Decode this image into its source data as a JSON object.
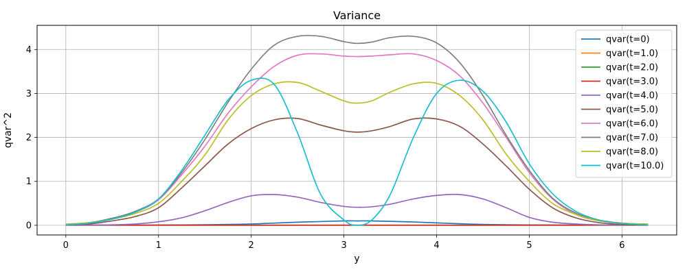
{
  "chart_data": {
    "type": "line",
    "title": "Variance",
    "xlabel": "y",
    "ylabel": "qvar^2",
    "xlim": [
      -0.31,
      6.59
    ],
    "ylim": [
      -0.22,
      4.55
    ],
    "xticks": [
      "0",
      "1",
      "2",
      "3",
      "4",
      "5",
      "6"
    ],
    "yticks": [
      "0",
      "1",
      "2",
      "3",
      "4"
    ],
    "grid": true,
    "legend_position": "top-right",
    "x": [
      0,
      0.25,
      0.5,
      0.75,
      1.0,
      1.25,
      1.5,
      1.75,
      2.0,
      2.25,
      2.5,
      2.75,
      3.0,
      3.14,
      3.3,
      3.5,
      3.75,
      4.0,
      4.25,
      4.5,
      4.75,
      5.0,
      5.25,
      5.5,
      5.75,
      6.0,
      6.28
    ],
    "series": [
      {
        "name": "qvar(t=0)",
        "color": "#1f77b4",
        "values": [
          0.005,
          0.005,
          0.005,
          0.005,
          0.006,
          0.008,
          0.012,
          0.02,
          0.03,
          0.05,
          0.07,
          0.085,
          0.1,
          0.1,
          0.1,
          0.09,
          0.075,
          0.055,
          0.035,
          0.02,
          0.012,
          0.008,
          0.006,
          0.005,
          0.005,
          0.005,
          0.005
        ]
      },
      {
        "name": "qvar(t=1.0)",
        "color": "#ff7f0e",
        "values": [
          0.002,
          0.002,
          0.002,
          0.002,
          0.002,
          0.002,
          0.002,
          0.002,
          0.002,
          0.002,
          0.002,
          0.002,
          0.002,
          0.002,
          0.002,
          0.002,
          0.002,
          0.002,
          0.002,
          0.002,
          0.002,
          0.002,
          0.002,
          0.002,
          0.002,
          0.002,
          0.002
        ]
      },
      {
        "name": "qvar(t=2.0)",
        "color": "#2ca02c",
        "values": [
          0.001,
          0.001,
          0.001,
          0.001,
          0.001,
          0.001,
          0.001,
          0.001,
          0.001,
          0.001,
          0.001,
          0.001,
          0.001,
          0.001,
          0.001,
          0.001,
          0.001,
          0.001,
          0.001,
          0.001,
          0.001,
          0.001,
          0.001,
          0.001,
          0.001,
          0.001,
          0.001
        ]
      },
      {
        "name": "qvar(t=3.0)",
        "color": "#d62728",
        "values": [
          0.003,
          0.003,
          0.003,
          0.003,
          0.003,
          0.003,
          0.003,
          0.003,
          0.003,
          0.003,
          0.003,
          0.003,
          0.003,
          0.003,
          0.003,
          0.003,
          0.003,
          0.003,
          0.003,
          0.003,
          0.003,
          0.003,
          0.003,
          0.003,
          0.003,
          0.003,
          0.003
        ]
      },
      {
        "name": "qvar(t=4.0)",
        "color": "#9467bd",
        "values": [
          0.003,
          0.005,
          0.01,
          0.03,
          0.08,
          0.17,
          0.33,
          0.52,
          0.67,
          0.7,
          0.64,
          0.52,
          0.43,
          0.41,
          0.42,
          0.48,
          0.6,
          0.68,
          0.7,
          0.6,
          0.4,
          0.18,
          0.07,
          0.03,
          0.01,
          0.005,
          0.003
        ]
      },
      {
        "name": "qvar(t=5.0)",
        "color": "#8c564b",
        "values": [
          0.01,
          0.03,
          0.1,
          0.2,
          0.4,
          0.85,
          1.35,
          1.85,
          2.2,
          2.4,
          2.43,
          2.28,
          2.15,
          2.12,
          2.15,
          2.25,
          2.42,
          2.42,
          2.25,
          1.85,
          1.35,
          0.82,
          0.4,
          0.17,
          0.06,
          0.02,
          0.01
        ]
      },
      {
        "name": "qvar(t=6.0)",
        "color": "#e377c2",
        "values": [
          0.02,
          0.05,
          0.16,
          0.3,
          0.58,
          1.15,
          1.8,
          2.55,
          3.15,
          3.62,
          3.87,
          3.9,
          3.85,
          3.84,
          3.85,
          3.88,
          3.9,
          3.75,
          3.4,
          2.78,
          2.0,
          1.2,
          0.6,
          0.25,
          0.1,
          0.05,
          0.02
        ]
      },
      {
        "name": "qvar(t=7.0)",
        "color": "#7f7f7f",
        "values": [
          0.02,
          0.06,
          0.16,
          0.32,
          0.6,
          1.2,
          1.95,
          2.8,
          3.55,
          4.1,
          4.3,
          4.3,
          4.18,
          4.14,
          4.17,
          4.27,
          4.3,
          4.15,
          3.7,
          2.95,
          2.05,
          1.25,
          0.62,
          0.28,
          0.12,
          0.05,
          0.02
        ]
      },
      {
        "name": "qvar(t=8.0)",
        "color": "#bcbd22",
        "values": [
          0.03,
          0.06,
          0.14,
          0.27,
          0.5,
          1.0,
          1.6,
          2.4,
          2.95,
          3.22,
          3.25,
          3.05,
          2.83,
          2.78,
          2.83,
          3.03,
          3.22,
          3.23,
          2.95,
          2.4,
          1.62,
          1.0,
          0.5,
          0.25,
          0.1,
          0.05,
          0.03
        ]
      },
      {
        "name": "qvar(t=10.0)",
        "color": "#17becf",
        "values": [
          0.01,
          0.05,
          0.14,
          0.3,
          0.6,
          1.25,
          2.05,
          2.85,
          3.3,
          3.2,
          2.1,
          0.7,
          0.12,
          0.0,
          0.12,
          0.7,
          2.0,
          3.0,
          3.3,
          3.05,
          2.35,
          1.4,
          0.72,
          0.32,
          0.12,
          0.04,
          0.01
        ]
      }
    ]
  }
}
